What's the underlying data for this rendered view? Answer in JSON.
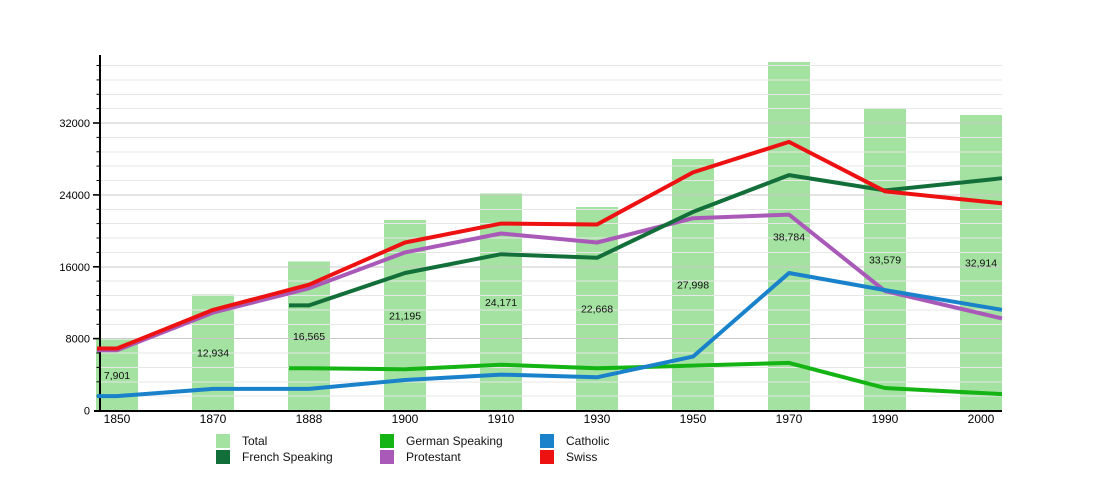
{
  "chart_data": {
    "type": "bar+line",
    "categories": [
      "1850",
      "1870",
      "1888",
      "1900",
      "1910",
      "1930",
      "1950",
      "1970",
      "1990",
      "2000"
    ],
    "bars": {
      "name": "Total",
      "color": "#a3e2a0",
      "values": [
        7901,
        12934,
        16565,
        21195,
        24171,
        22668,
        27998,
        38784,
        33579,
        32914
      ],
      "labels": [
        "7,901",
        "12,934",
        "16,565",
        "21,195",
        "24,171",
        "22,668",
        "27,998",
        "38,784",
        "33,579",
        "32,914"
      ]
    },
    "series": [
      {
        "name": "German Speaking",
        "color": "#14b414",
        "values": [
          null,
          null,
          4700,
          4600,
          5100,
          4700,
          5000,
          5300,
          2500,
          1950
        ]
      },
      {
        "name": "Protestant",
        "color": "#a95ab8",
        "values": [
          6700,
          10900,
          13600,
          17600,
          19700,
          18700,
          21400,
          21800,
          13300,
          10800
        ]
      },
      {
        "name": "Catholic",
        "color": "#1982cb",
        "values": [
          1600,
          2400,
          2400,
          3400,
          4000,
          3700,
          6000,
          15300,
          13400,
          11600
        ]
      },
      {
        "name": "French Speaking",
        "color": "#136f39",
        "values": [
          null,
          null,
          11700,
          15300,
          17400,
          17000,
          22100,
          26200,
          24500,
          25600
        ]
      },
      {
        "name": "Swiss",
        "color": "#ee1111",
        "values": [
          6900,
          11200,
          14000,
          18700,
          20800,
          20700,
          26500,
          29900,
          24400,
          23300
        ]
      }
    ],
    "y_axis": {
      "ticks": [
        0,
        8000,
        16000,
        24000,
        32000
      ],
      "tick_labels": [
        "0",
        "8000",
        "16000",
        "24000",
        "32000"
      ],
      "minor_step": 1600,
      "ylim": [
        0,
        39300
      ],
      "grid": "horizontal, minor and major"
    },
    "legend_position": "bottom"
  },
  "legend": {
    "items": [
      {
        "label": "Total",
        "color": "#a3e2a0"
      },
      {
        "label": "German Speaking",
        "color": "#14b414"
      },
      {
        "label": "Catholic",
        "color": "#1982cb"
      },
      {
        "label": "French Speaking",
        "color": "#136f39"
      },
      {
        "label": "Protestant",
        "color": "#a95ab8"
      },
      {
        "label": "Swiss",
        "color": "#ee1111"
      }
    ]
  }
}
